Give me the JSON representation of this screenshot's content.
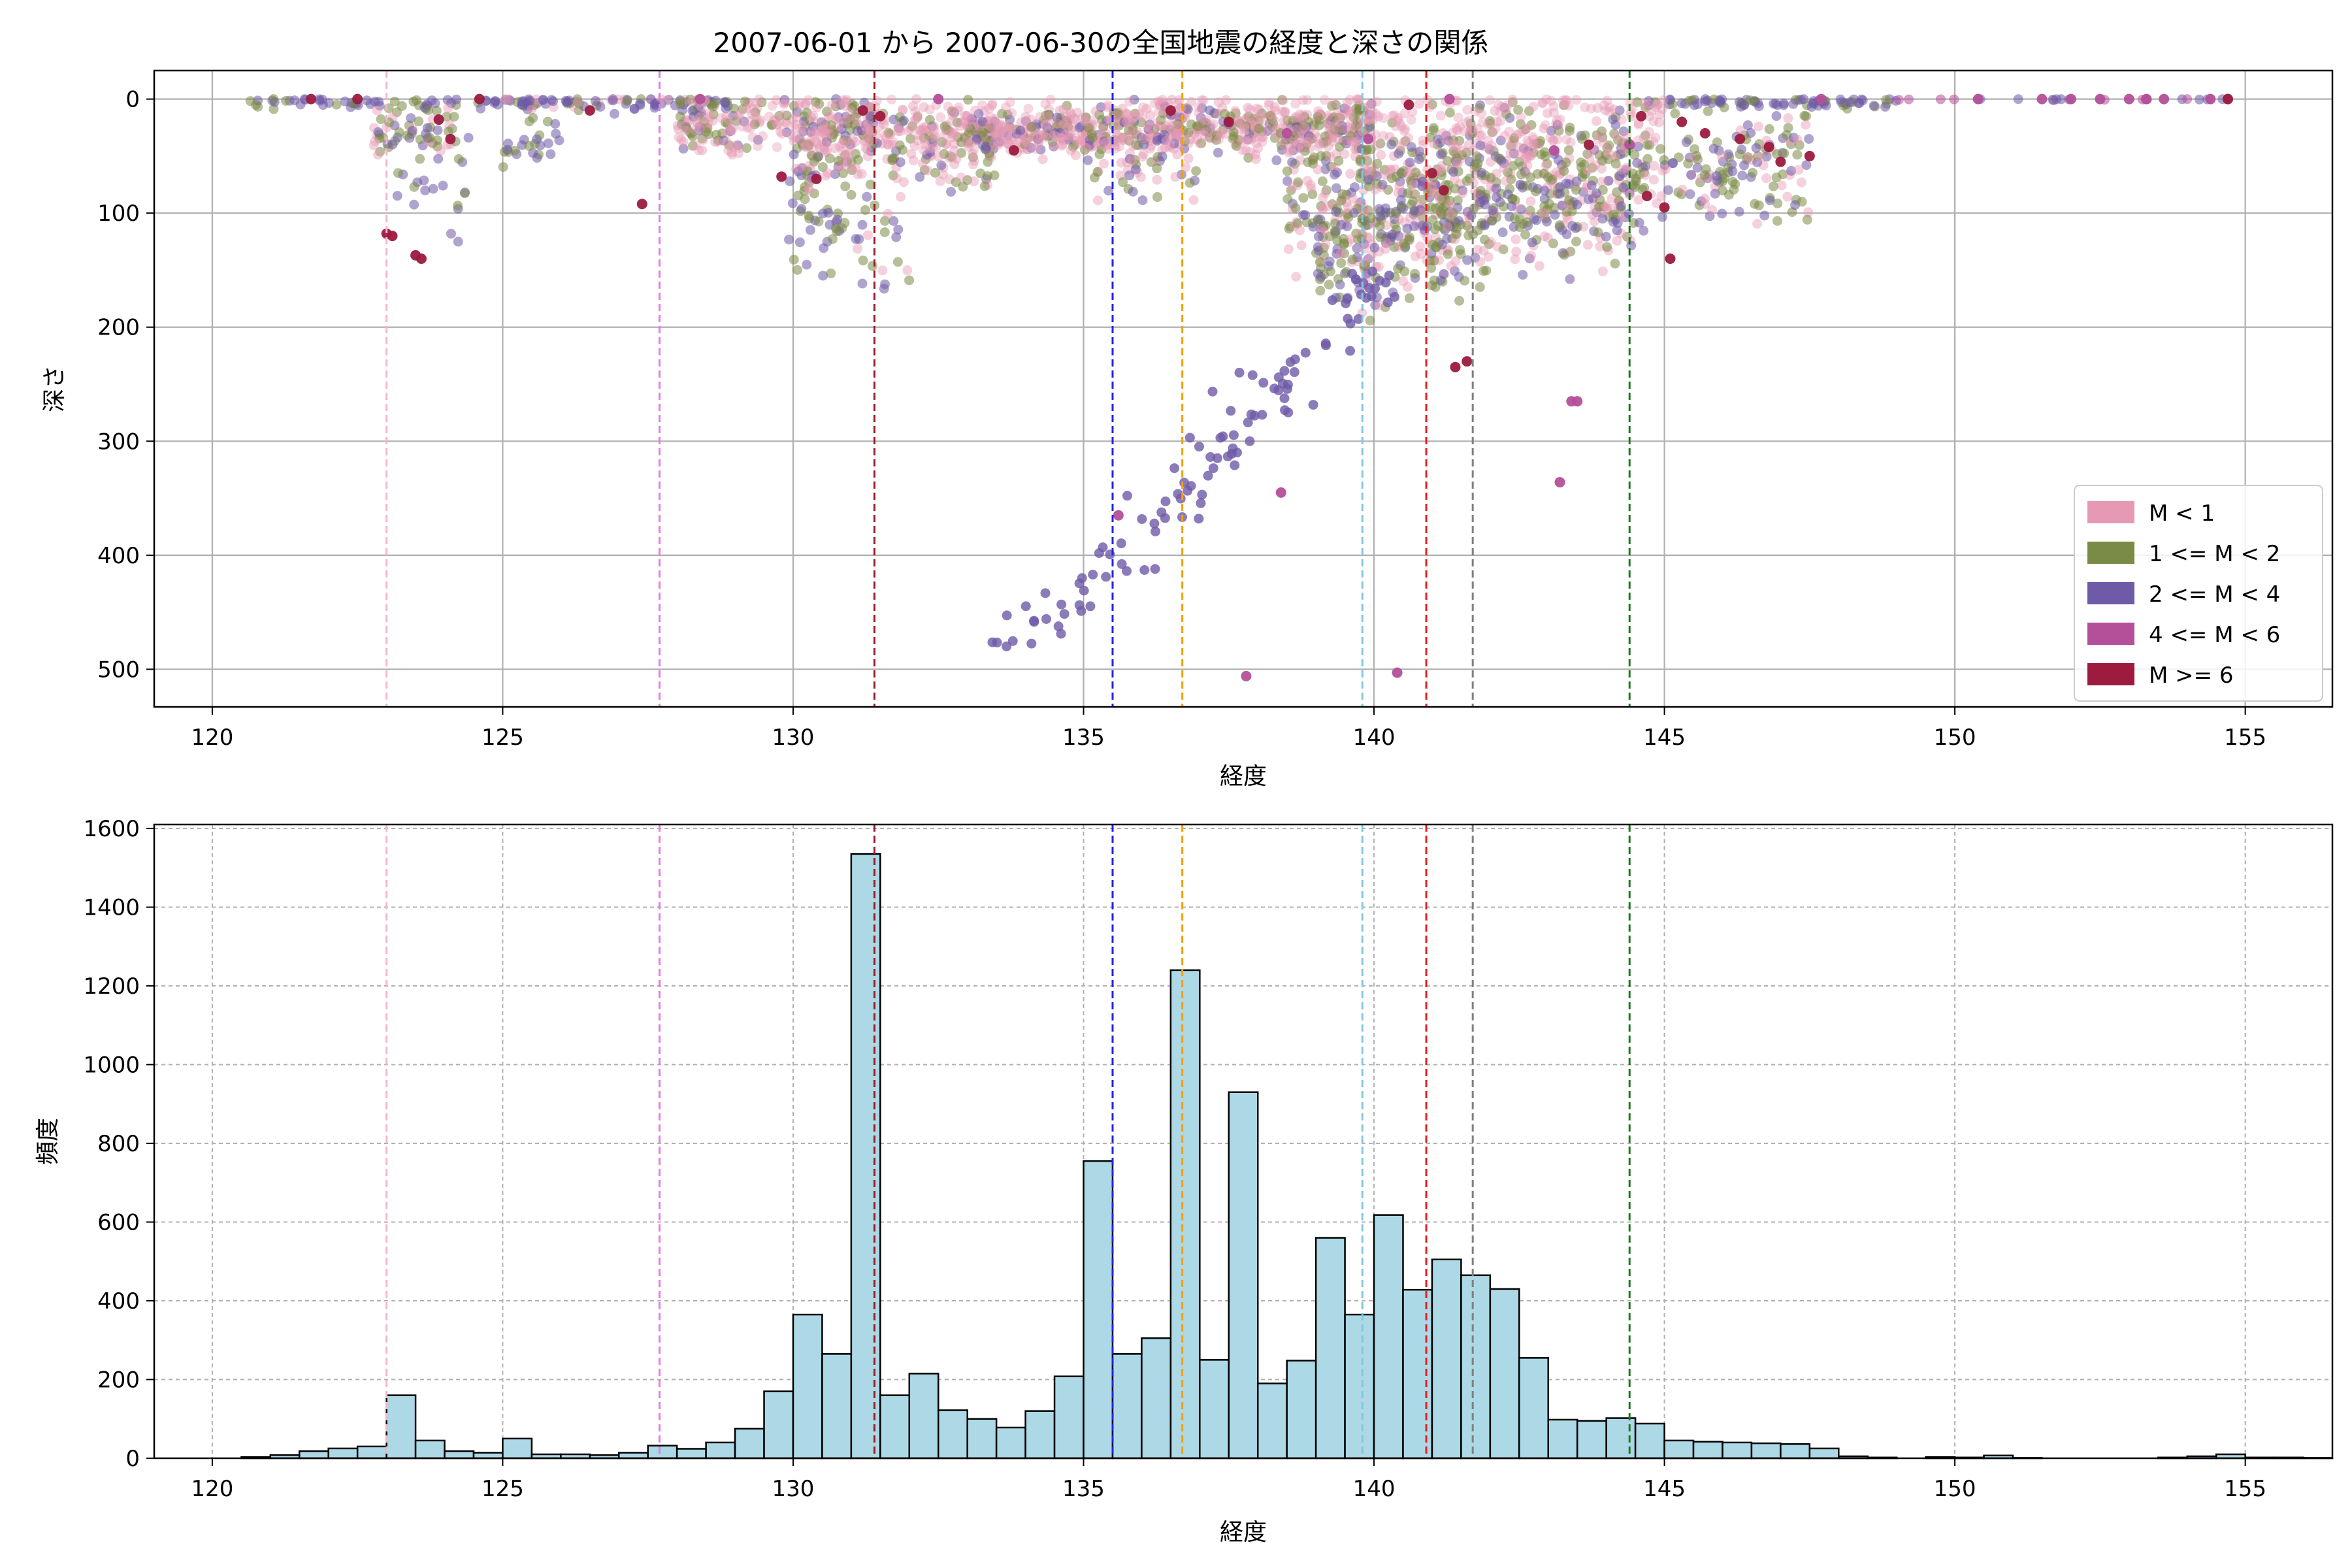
{
  "title": "2007-06-01 から 2007-06-30の全国地震の経度と深さの関係",
  "chart_data": [
    {
      "type": "scatter",
      "xlabel": "経度",
      "ylabel": "深さ",
      "xlim": [
        119,
        156.5
      ],
      "ylim": [
        533,
        -25
      ],
      "y_inverted": true,
      "xticks": [
        120,
        125,
        130,
        135,
        140,
        145,
        150,
        155
      ],
      "yticks": [
        0,
        100,
        200,
        300,
        400,
        500
      ],
      "grid": true,
      "legend_position": "lower-right",
      "legend": [
        {
          "label": "M < 1",
          "color": "#e699b4"
        },
        {
          "label": "1 <= M < 2",
          "color": "#7a8b45"
        },
        {
          "label": "2 <= M < 4",
          "color": "#6f5aa8"
        },
        {
          "label": "4 <= M < 6",
          "color": "#b44f9a"
        },
        {
          "label": "M >= 6",
          "color": "#9c1b3f"
        }
      ],
      "reference_lines": [
        {
          "x": 123.0,
          "color": "#f4b6cf"
        },
        {
          "x": 127.7,
          "color": "#e07de6"
        },
        {
          "x": 131.4,
          "color": "#9c1b2a"
        },
        {
          "x": 135.5,
          "color": "#1f22e8"
        },
        {
          "x": 136.7,
          "color": "#f5a000"
        },
        {
          "x": 139.8,
          "color": "#84c6e0"
        },
        {
          "x": 140.9,
          "color": "#e61e1e"
        },
        {
          "x": 141.7,
          "color": "#808080"
        },
        {
          "x": 144.4,
          "color": "#1e7a1e"
        }
      ],
      "series": [
        {
          "class": 4,
          "points": [
            [
              135.6,
              365
            ],
            [
              137.8,
              506
            ],
            [
              138.4,
              345
            ],
            [
              140.4,
              503
            ],
            [
              143.2,
              336
            ],
            [
              143.4,
              265
            ],
            [
              143.5,
              265
            ],
            [
              144.4,
              40
            ],
            [
              143.1,
              45
            ],
            [
              139.9,
              35
            ],
            [
              138.5,
              30
            ],
            [
              147.7,
              0
            ],
            [
              152.0,
              0
            ],
            [
              152.5,
              0
            ],
            [
              153.0,
              0
            ],
            [
              153.3,
              0
            ],
            [
              153.6,
              0
            ],
            [
              154.4,
              0
            ],
            [
              154.7,
              0
            ],
            [
              151.5,
              0
            ],
            [
              150.4,
              0
            ],
            [
              141.3,
              0
            ],
            [
              132.5,
              0
            ],
            [
              128.4,
              0
            ]
          ]
        },
        {
          "class": 5,
          "points": [
            [
              123.0,
              118
            ],
            [
              123.1,
              120
            ],
            [
              123.5,
              137
            ],
            [
              123.6,
              140
            ],
            [
              124.1,
              35
            ],
            [
              123.9,
              18
            ],
            [
              127.4,
              92
            ],
            [
              129.8,
              68
            ],
            [
              130.4,
              70
            ],
            [
              131.2,
              10
            ],
            [
              131.5,
              15
            ],
            [
              133.8,
              45
            ],
            [
              136.5,
              10
            ],
            [
              141.0,
              65
            ],
            [
              141.2,
              80
            ],
            [
              141.4,
              235
            ],
            [
              141.6,
              230
            ],
            [
              143.7,
              40
            ],
            [
              144.6,
              15
            ],
            [
              144.7,
              85
            ],
            [
              145.0,
              95
            ],
            [
              145.1,
              140
            ],
            [
              146.3,
              35
            ],
            [
              146.8,
              42
            ],
            [
              147.0,
              55
            ],
            [
              145.3,
              20
            ],
            [
              145.7,
              30
            ],
            [
              140.6,
              5
            ],
            [
              126.5,
              10
            ],
            [
              137.5,
              20
            ],
            [
              147.5,
              50
            ],
            [
              154.7,
              0
            ],
            [
              121.7,
              0
            ],
            [
              122.5,
              0
            ],
            [
              124.6,
              0
            ]
          ]
        }
      ]
    },
    {
      "type": "bar",
      "xlabel": "経度",
      "ylabel": "頻度",
      "xlim": [
        119,
        156.5
      ],
      "ylim": [
        0,
        1610
      ],
      "xticks": [
        120,
        125,
        130,
        135,
        140,
        145,
        150,
        155
      ],
      "yticks": [
        0,
        200,
        400,
        600,
        800,
        1000,
        1200,
        1400,
        1600
      ],
      "grid": true,
      "bin_start": 120.5,
      "bin_width": 0.5,
      "values": [
        3,
        8,
        18,
        25,
        30,
        160,
        45,
        18,
        14,
        50,
        10,
        10,
        8,
        14,
        32,
        24,
        40,
        75,
        170,
        365,
        265,
        1535,
        160,
        215,
        122,
        100,
        78,
        120,
        208,
        755,
        265,
        305,
        1240,
        250,
        930,
        190,
        248,
        560,
        365,
        618,
        428,
        505,
        465,
        430,
        255,
        98,
        95,
        102,
        88,
        45,
        42,
        40,
        38,
        36,
        25,
        5,
        2,
        0,
        3,
        2,
        7,
        1,
        0,
        0,
        0,
        0,
        2,
        5,
        10,
        2,
        2,
        1
      ]
    }
  ]
}
